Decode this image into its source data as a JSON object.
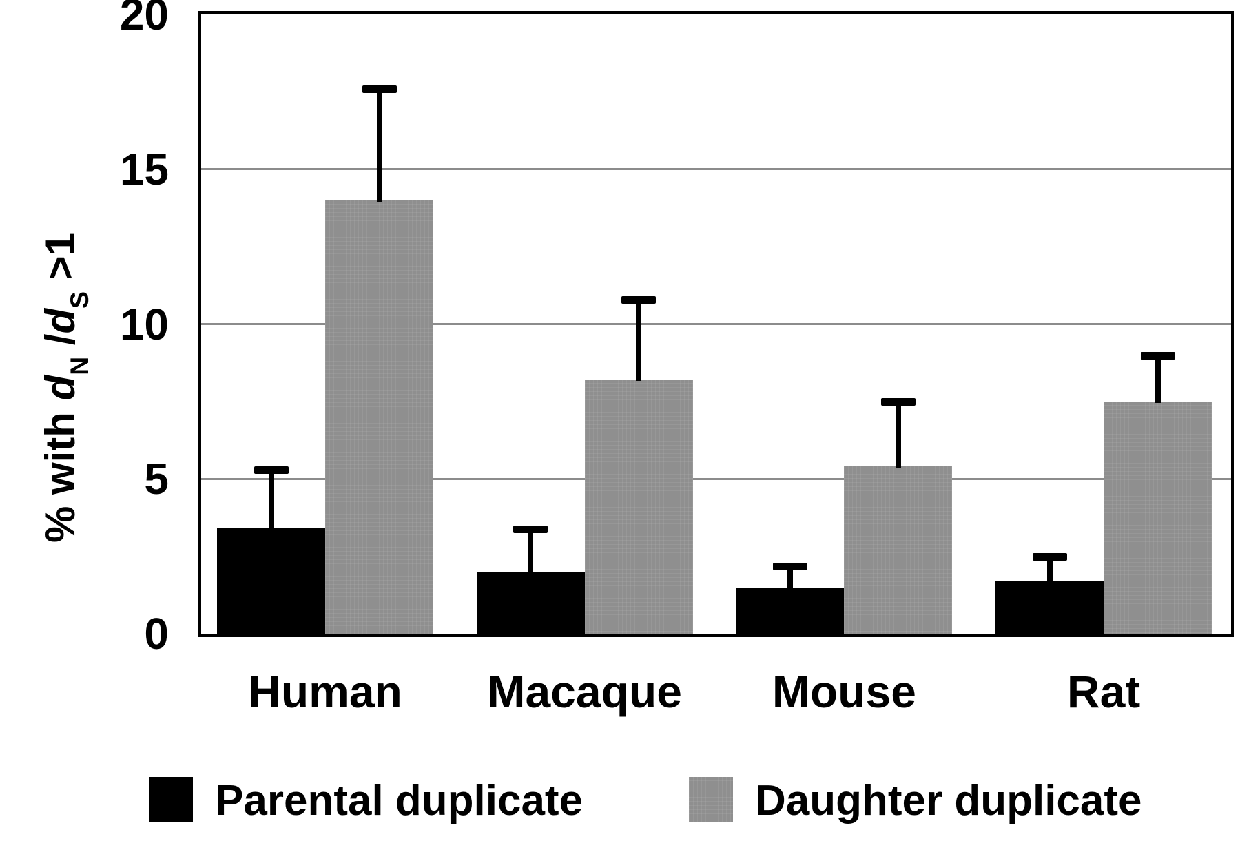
{
  "chart_data": {
    "type": "bar",
    "title": "",
    "categories": [
      "Human",
      "Macaque",
      "Mouse",
      "Rat"
    ],
    "series": [
      {
        "name": "Parental duplicate",
        "color": "#000000",
        "values": [
          3.4,
          2.0,
          1.5,
          1.7
        ],
        "error_tops": [
          5.4,
          3.5,
          2.3,
          2.6
        ]
      },
      {
        "name": "Daughter duplicate",
        "color": "#8f8f8f",
        "values": [
          14.0,
          8.2,
          5.4,
          7.5
        ],
        "error_tops": [
          17.7,
          10.9,
          7.6,
          9.1
        ]
      }
    ],
    "xlabel": "",
    "ylabel": "% with dN/dS >1",
    "ylabel_parts": {
      "prefix": "% with ",
      "d1": "d",
      "sub1": "N",
      "mid": " /",
      "d2": "d",
      "sub2": "S",
      "suffix": " >1"
    },
    "ylim": [
      0,
      20
    ],
    "yticks": [
      20,
      15,
      10,
      5,
      0
    ],
    "gridlines": [
      5,
      10,
      15
    ],
    "grid_on": true,
    "grid_color": "#8c8c8c",
    "frame_color": "#000000",
    "error_bars": true,
    "legend_position": "bottom"
  }
}
